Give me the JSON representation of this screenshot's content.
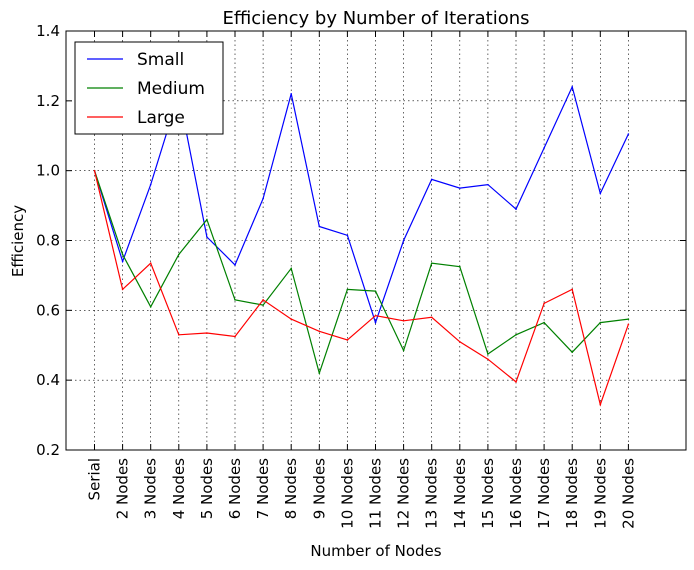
{
  "chart_data": {
    "type": "line",
    "title": "Efficiency by Number of Iterations",
    "xlabel": "Number of Nodes",
    "ylabel": "Efficiency",
    "categories": [
      "Serial",
      "2 Nodes",
      "3 Nodes",
      "4 Nodes",
      "5 Nodes",
      "6 Nodes",
      "7 Nodes",
      "8 Nodes",
      "9 Nodes",
      "10 Nodes",
      "11 Nodes",
      "12 Nodes",
      "13 Nodes",
      "14 Nodes",
      "15 Nodes",
      "16 Nodes",
      "17 Nodes",
      "18 Nodes",
      "19 Nodes",
      "20 Nodes"
    ],
    "ylim": [
      0.2,
      1.4
    ],
    "yticks": [
      "0.2",
      "0.4",
      "0.6",
      "0.8",
      "1.0",
      "1.2",
      "1.4"
    ],
    "grid": true,
    "legend_position": "top-left",
    "series": [
      {
        "name": "Small",
        "color": "#0000ff",
        "values": [
          1.0,
          0.74,
          0.96,
          1.22,
          0.81,
          0.73,
          0.92,
          1.22,
          0.84,
          0.815,
          0.565,
          0.8,
          0.975,
          0.95,
          0.96,
          0.89,
          1.065,
          1.24,
          0.935,
          1.105
        ]
      },
      {
        "name": "Medium",
        "color": "#008000",
        "values": [
          1.0,
          0.76,
          0.61,
          0.76,
          0.86,
          0.63,
          0.615,
          0.72,
          0.42,
          0.66,
          0.655,
          0.485,
          0.735,
          0.725,
          0.475,
          0.53,
          0.565,
          0.48,
          0.565,
          0.575
        ]
      },
      {
        "name": "Large",
        "color": "#ff0000",
        "values": [
          1.0,
          0.66,
          0.735,
          0.53,
          0.535,
          0.525,
          0.63,
          0.575,
          0.54,
          0.515,
          0.585,
          0.57,
          0.58,
          0.51,
          0.46,
          0.395,
          0.62,
          0.66,
          0.33,
          0.56
        ]
      }
    ]
  }
}
